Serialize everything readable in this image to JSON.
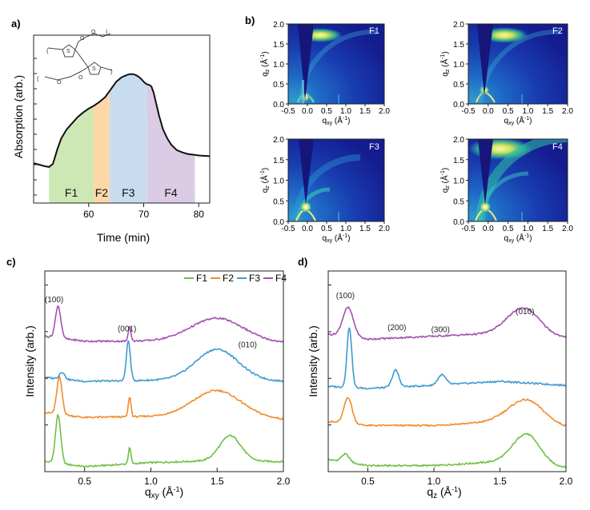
{
  "chart_data": [
    {
      "panel": "a",
      "type": "area",
      "title": "",
      "xlabel": "Time (min)",
      "ylabel": "Absorption (arb.)",
      "xlim": [
        50,
        82
      ],
      "x_ticks": [
        60,
        70,
        80
      ],
      "ylim": [
        0,
        1
      ],
      "series": [
        {
          "name": "absorption",
          "x": [
            50,
            51,
            52,
            52.8,
            53.5,
            54.3,
            55,
            56,
            57,
            58,
            59,
            60,
            61,
            62,
            63,
            64,
            65,
            66,
            67,
            67.5,
            68,
            68.5,
            69,
            69.5,
            70,
            70.5,
            71,
            71.4,
            71.8,
            72.2,
            72.8,
            73.5,
            74.3,
            75,
            76,
            77,
            78,
            79,
            80,
            82
          ],
          "y": [
            0.26,
            0.25,
            0.24,
            0.235,
            0.255,
            0.35,
            0.42,
            0.48,
            0.52,
            0.56,
            0.59,
            0.615,
            0.635,
            0.66,
            0.69,
            0.74,
            0.79,
            0.82,
            0.835,
            0.84,
            0.84,
            0.835,
            0.825,
            0.81,
            0.79,
            0.775,
            0.77,
            0.76,
            0.72,
            0.66,
            0.57,
            0.48,
            0.42,
            0.38,
            0.345,
            0.33,
            0.32,
            0.315,
            0.31,
            0.305
          ]
        }
      ],
      "fractions": [
        {
          "label": "F1",
          "start": 52.8,
          "end": 60.9,
          "color": "#cde8b4"
        },
        {
          "label": "F2",
          "start": 60.9,
          "end": 63.8,
          "color": "#fdd8a6"
        },
        {
          "label": "F3",
          "start": 63.8,
          "end": 70.6,
          "color": "#c7ddef"
        },
        {
          "label": "F4",
          "start": 70.6,
          "end": 79.3,
          "color": "#dccbe4"
        }
      ]
    },
    {
      "panel": "b",
      "type": "heatmap",
      "xlabel": "qxy (Å⁻¹)",
      "ylabel": "qz (Å⁻¹)",
      "xlim": [
        -0.5,
        2.0
      ],
      "ylim": [
        0,
        2.0
      ],
      "x_ticks": [
        "-0.5",
        "0.0",
        "0.5",
        "1.0",
        "1.5",
        "2.0"
      ],
      "y_ticks": [
        "0.0",
        "0.5",
        "1.0",
        "1.5",
        "2.0"
      ],
      "maps": [
        "F1",
        "F2",
        "F3",
        "F4"
      ]
    },
    {
      "panel": "c",
      "type": "line",
      "xlabel": "qxy (Å⁻¹)",
      "ylabel": "Intensity (arb.)",
      "xlim": [
        0.2,
        2.0
      ],
      "x_ticks": [
        "0.5",
        "1.0",
        "1.5",
        "2.0"
      ],
      "ylim": [
        0,
        10
      ],
      "legend_position": "top-right",
      "annotations": [
        {
          "text": "(100)",
          "x": 0.27,
          "y": 8.45
        },
        {
          "text": "(001)",
          "x": 0.82,
          "y": 7.0
        },
        {
          "text": "(010)",
          "x": 1.73,
          "y": 6.2
        }
      ],
      "series": [
        {
          "name": "F1",
          "color": "#72bf44",
          "offset": 0.0,
          "peaks": [
            [
              0.3,
              2.4,
              0.02
            ],
            [
              0.84,
              0.8,
              0.01
            ],
            [
              1.6,
              1.25,
              0.08
            ]
          ],
          "background": [
            [
              0.2,
              0.5
            ],
            [
              0.5,
              0.25
            ],
            [
              1.0,
              0.45
            ],
            [
              1.5,
              0.55
            ],
            [
              2.0,
              0.5
            ]
          ]
        },
        {
          "name": "F2",
          "color": "#f38b2c",
          "offset": 2.4,
          "peaks": [
            [
              0.31,
              1.85,
              0.02
            ],
            [
              0.84,
              1.0,
              0.01
            ],
            [
              1.5,
              1.25,
              0.18
            ]
          ],
          "background": [
            [
              0.2,
              0.55
            ],
            [
              0.5,
              0.3
            ],
            [
              1.0,
              0.35
            ],
            [
              1.5,
              0.4
            ],
            [
              2.0,
              0.2
            ]
          ]
        },
        {
          "name": "F3",
          "color": "#3d9bd1",
          "offset": 4.3,
          "peaks": [
            [
              0.33,
              0.35,
              0.02
            ],
            [
              0.83,
              2.0,
              0.015
            ],
            [
              1.5,
              1.5,
              0.16
            ]
          ],
          "background": [
            [
              0.2,
              0.4
            ],
            [
              0.5,
              0.2
            ],
            [
              1.0,
              0.25
            ],
            [
              1.5,
              0.3
            ],
            [
              2.0,
              0.2
            ]
          ]
        },
        {
          "name": "F4",
          "color": "#a451b1",
          "offset": 6.2,
          "peaks": [
            [
              0.3,
              1.6,
              0.02
            ],
            [
              0.84,
              0.75,
              0.01
            ],
            [
              1.5,
              1.15,
              0.2
            ]
          ],
          "background": [
            [
              0.2,
              0.55
            ],
            [
              0.5,
              0.3
            ],
            [
              1.0,
              0.3
            ],
            [
              1.5,
              0.3
            ],
            [
              2.0,
              0.2
            ]
          ]
        }
      ]
    },
    {
      "panel": "d",
      "type": "line",
      "xlabel": "qz (Å⁻¹)",
      "ylabel": "Intensity (arb.)",
      "xlim": [
        0.2,
        2.0
      ],
      "x_ticks": [
        "0.5",
        "1.0",
        "1.5",
        "2.0"
      ],
      "ylim": [
        0,
        10
      ],
      "annotations": [
        {
          "text": "(100)",
          "x": 0.33,
          "y": 8.65
        },
        {
          "text": "(200)",
          "x": 0.72,
          "y": 7.05
        },
        {
          "text": "(300)",
          "x": 1.05,
          "y": 6.95
        },
        {
          "text": "(010)",
          "x": 1.69,
          "y": 7.85
        }
      ],
      "series": [
        {
          "name": "F1",
          "color": "#72bf44",
          "offset": 0.0,
          "peaks": [
            [
              0.33,
              0.4,
              0.03
            ],
            [
              1.7,
              1.5,
              0.1
            ]
          ],
          "background": [
            [
              0.2,
              0.6
            ],
            [
              0.5,
              0.3
            ],
            [
              1.0,
              0.3
            ],
            [
              1.5,
              0.5
            ],
            [
              2.0,
              0.2
            ]
          ]
        },
        {
          "name": "F2",
          "color": "#f38b2c",
          "offset": 1.9,
          "peaks": [
            [
              0.35,
              1.3,
              0.03
            ],
            [
              1.7,
              1.2,
              0.13
            ]
          ],
          "background": [
            [
              0.2,
              0.6
            ],
            [
              0.5,
              0.4
            ],
            [
              1.0,
              0.4
            ],
            [
              1.5,
              0.6
            ],
            [
              2.0,
              0.3
            ]
          ]
        },
        {
          "name": "F3",
          "color": "#3d9bd1",
          "offset": 3.75,
          "peaks": [
            [
              0.36,
              3.0,
              0.018
            ],
            [
              0.71,
              0.85,
              0.025
            ],
            [
              1.06,
              0.5,
              0.03
            ]
          ],
          "background": [
            [
              0.2,
              0.5
            ],
            [
              0.5,
              0.4
            ],
            [
              1.0,
              0.55
            ],
            [
              1.5,
              0.75
            ],
            [
              2.0,
              0.55
            ]
          ]
        },
        {
          "name": "F4",
          "color": "#a451b1",
          "offset": 6.35,
          "peaks": [
            [
              0.35,
              1.45,
              0.04
            ],
            [
              1.68,
              1.35,
              0.12
            ]
          ],
          "background": [
            [
              0.2,
              0.5
            ],
            [
              0.5,
              0.25
            ],
            [
              1.0,
              0.4
            ],
            [
              1.5,
              0.55
            ],
            [
              2.0,
              0.3
            ]
          ]
        }
      ]
    }
  ],
  "panels": {
    "a": {
      "label": "a)"
    },
    "b": {
      "label": "b)"
    },
    "c": {
      "label": "c)"
    },
    "d": {
      "label": "d)"
    }
  }
}
